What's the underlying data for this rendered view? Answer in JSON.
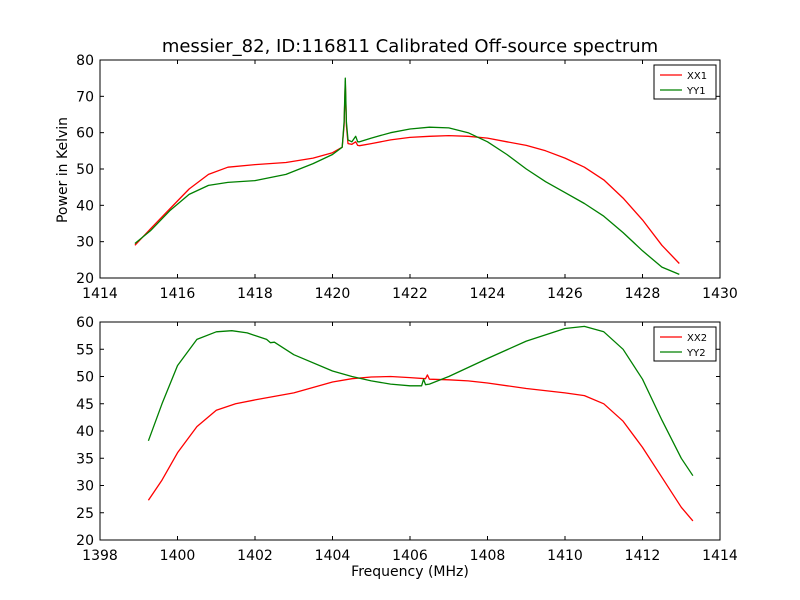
{
  "chart_data": [
    {
      "type": "line",
      "title": "messier_82, ID:116811 Calibrated Off-source spectrum",
      "xlabel": "",
      "ylabel": "Power in Kelvin",
      "xlim": [
        1414,
        1430
      ],
      "ylim": [
        20,
        80
      ],
      "xticks": [
        "1414",
        "1416",
        "1418",
        "1420",
        "1422",
        "1424",
        "1426",
        "1428",
        "1430"
      ],
      "yticks": [
        "20",
        "30",
        "40",
        "50",
        "60",
        "70",
        "80"
      ],
      "legend_position": "top-right",
      "grid": false,
      "series": [
        {
          "name": "XX1",
          "color": "#ff0000",
          "x": [
            1414.9,
            1415.3,
            1415.8,
            1416.3,
            1416.8,
            1417.3,
            1418.0,
            1418.8,
            1419.5,
            1420.0,
            1420.25,
            1420.3,
            1420.33,
            1420.36,
            1420.4,
            1420.5,
            1420.6,
            1420.65,
            1420.7,
            1421.0,
            1421.5,
            1422.0,
            1422.5,
            1423.0,
            1423.5,
            1424.0,
            1424.5,
            1425.0,
            1425.5,
            1426.0,
            1426.5,
            1427.0,
            1427.5,
            1428.0,
            1428.5,
            1428.95
          ],
          "y": [
            29,
            33.5,
            39,
            44.5,
            48.5,
            50.5,
            51.2,
            51.8,
            53,
            54.5,
            56,
            62,
            74,
            62,
            57,
            56.8,
            57.5,
            56.5,
            56.4,
            57,
            58,
            58.7,
            59,
            59.2,
            59,
            58.5,
            57.5,
            56.5,
            55,
            53,
            50.5,
            47,
            42,
            36,
            29,
            24
          ]
        },
        {
          "name": "YY1",
          "color": "#008000",
          "x": [
            1414.9,
            1415.3,
            1415.8,
            1416.3,
            1416.8,
            1417.3,
            1418.0,
            1418.8,
            1419.5,
            1420.0,
            1420.25,
            1420.3,
            1420.33,
            1420.36,
            1420.4,
            1420.5,
            1420.6,
            1420.65,
            1420.7,
            1421.0,
            1421.5,
            1422.0,
            1422.5,
            1423.0,
            1423.5,
            1424.0,
            1424.5,
            1425.0,
            1425.5,
            1426.0,
            1426.5,
            1427.0,
            1427.5,
            1428.0,
            1428.5,
            1428.95
          ],
          "y": [
            29.5,
            33,
            38.5,
            43,
            45.5,
            46.3,
            46.8,
            48.5,
            51.5,
            54,
            56,
            63,
            75,
            63,
            58,
            57.5,
            59,
            57.5,
            57.5,
            58.5,
            60,
            61,
            61.5,
            61.3,
            60,
            57.5,
            54,
            50,
            46.5,
            43.5,
            40.5,
            37,
            32.5,
            27.5,
            23,
            21
          ]
        }
      ]
    },
    {
      "type": "line",
      "title": "",
      "xlabel": "Frequency (MHz)",
      "ylabel": "",
      "xlim": [
        1398,
        1414
      ],
      "ylim": [
        20,
        60
      ],
      "xticks": [
        "1398",
        "1400",
        "1402",
        "1404",
        "1406",
        "1408",
        "1410",
        "1412",
        "1414"
      ],
      "yticks": [
        "20",
        "25",
        "30",
        "35",
        "40",
        "45",
        "50",
        "55",
        "60"
      ],
      "legend_position": "top-right",
      "grid": false,
      "series": [
        {
          "name": "XX2",
          "color": "#ff0000",
          "x": [
            1399.25,
            1399.6,
            1400.0,
            1400.5,
            1401.0,
            1401.5,
            1402.0,
            1403.0,
            1404.0,
            1404.5,
            1405.0,
            1405.5,
            1406.0,
            1406.4,
            1406.45,
            1406.5,
            1407.0,
            1407.5,
            1408.0,
            1409.0,
            1410.0,
            1410.5,
            1411.0,
            1411.5,
            1412.0,
            1412.5,
            1413.0,
            1413.3
          ],
          "y": [
            27.3,
            31,
            36,
            40.8,
            43.8,
            45,
            45.7,
            47,
            49,
            49.6,
            49.9,
            50,
            49.8,
            49.6,
            50.3,
            49.5,
            49.4,
            49.2,
            48.8,
            47.8,
            47,
            46.5,
            45,
            41.8,
            37,
            31.5,
            26,
            23.5
          ]
        },
        {
          "name": "YY2",
          "color": "#008000",
          "x": [
            1399.25,
            1399.6,
            1400.0,
            1400.5,
            1401.0,
            1401.4,
            1401.8,
            1402.3,
            1402.4,
            1402.5,
            1403.0,
            1404.0,
            1404.5,
            1405.0,
            1405.5,
            1406.0,
            1406.3,
            1406.35,
            1406.4,
            1406.5,
            1407.0,
            1408.0,
            1409.0,
            1410.0,
            1410.5,
            1411.0,
            1411.5,
            1412.0,
            1412.5,
            1413.0,
            1413.3
          ],
          "y": [
            38.2,
            45,
            52,
            56.8,
            58.2,
            58.4,
            58,
            56.8,
            56.2,
            56.3,
            54,
            51,
            50,
            49.2,
            48.6,
            48.3,
            48.3,
            49.5,
            48.5,
            48.6,
            50,
            53.3,
            56.5,
            58.8,
            59.2,
            58.2,
            55,
            49.5,
            42,
            35,
            31.8
          ]
        }
      ]
    }
  ]
}
